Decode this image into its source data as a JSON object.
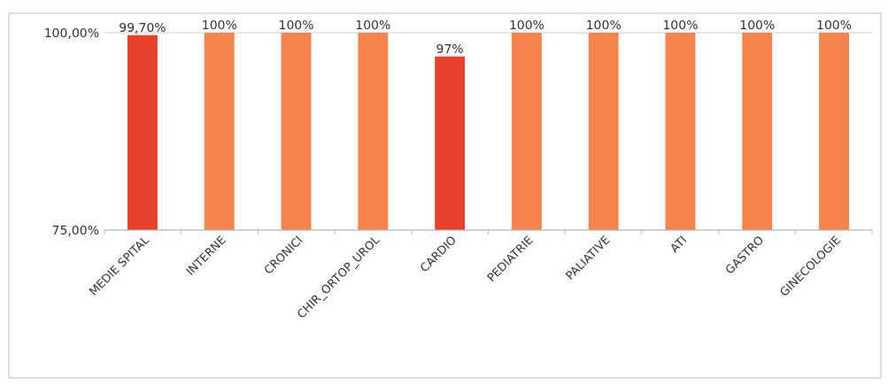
{
  "chart_data": {
    "type": "bar",
    "categories": [
      "MEDIE SPITAL",
      "INTERNE",
      "CRONICI",
      "CHIR_ORTOP_UROL",
      "CARDIO",
      "PEDIATRIE",
      "PALIATIVE",
      "ATI",
      "GASTRO",
      "GINECOLOGIE"
    ],
    "values": [
      99.7,
      100,
      100,
      100,
      97,
      100,
      100,
      100,
      100,
      100
    ],
    "colors": [
      "#e8402a",
      "#f5834b",
      "#f5834b",
      "#f5834b",
      "#e8402a",
      "#f5834b",
      "#f5834b",
      "#f5834b",
      "#f5834b",
      "#f5834b"
    ],
    "value_labels": [
      "99,70%",
      "100%",
      "100%",
      "100%",
      "97%",
      "100%",
      "100%",
      "100%",
      "100%",
      "100%"
    ],
    "ylim": [
      75,
      100
    ],
    "yticks": [
      {
        "value": 75,
        "label": "75,00%"
      },
      {
        "value": 100,
        "label": "100,00%"
      }
    ],
    "grid": "y"
  }
}
